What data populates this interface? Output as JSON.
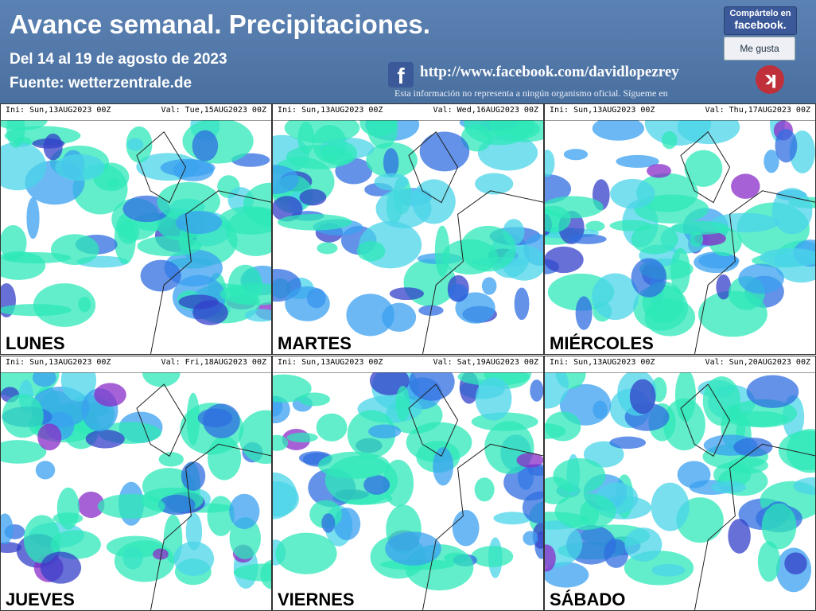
{
  "header": {
    "title": "Avance semanal. Precipitaciones.",
    "dates": "Del 14 al 19 de agosto de 2023",
    "source": "Fuente: wetterzentrale.de",
    "share": "Compártelo en",
    "share_brand": "facebook.",
    "like": "Me gusta",
    "url": "http://www.facebook.com/davidlopezrey",
    "disclaimer": "Esta información no representa a ningún organismo oficial. Sígueme en"
  },
  "panels": [
    {
      "init": "Ini: Sun,13AUG2023 00Z",
      "valid": "Val: Tue,15AUG2023 00Z",
      "day": "LUNES"
    },
    {
      "init": "Ini: Sun,13AUG2023 00Z",
      "valid": "Val: Wed,16AUG2023 00Z",
      "day": "MARTES"
    },
    {
      "init": "Ini: Sun,13AUG2023 00Z",
      "valid": "Val: Thu,17AUG2023 00Z",
      "day": "MIÉRCOLES"
    },
    {
      "init": "Ini: Sun,13AUG2023 00Z",
      "valid": "Val: Fri,18AUG2023 00Z",
      "day": "JUEVES"
    },
    {
      "init": "Ini: Sun,13AUG2023 00Z",
      "valid": "Val: Sat,19AUG2023 00Z",
      "day": "VIERNES"
    },
    {
      "init": "Ini: Sun,13AUG2023 00Z",
      "valid": "Val: Sun,20AUG2023 00Z",
      "day": "SÁBADO"
    }
  ]
}
